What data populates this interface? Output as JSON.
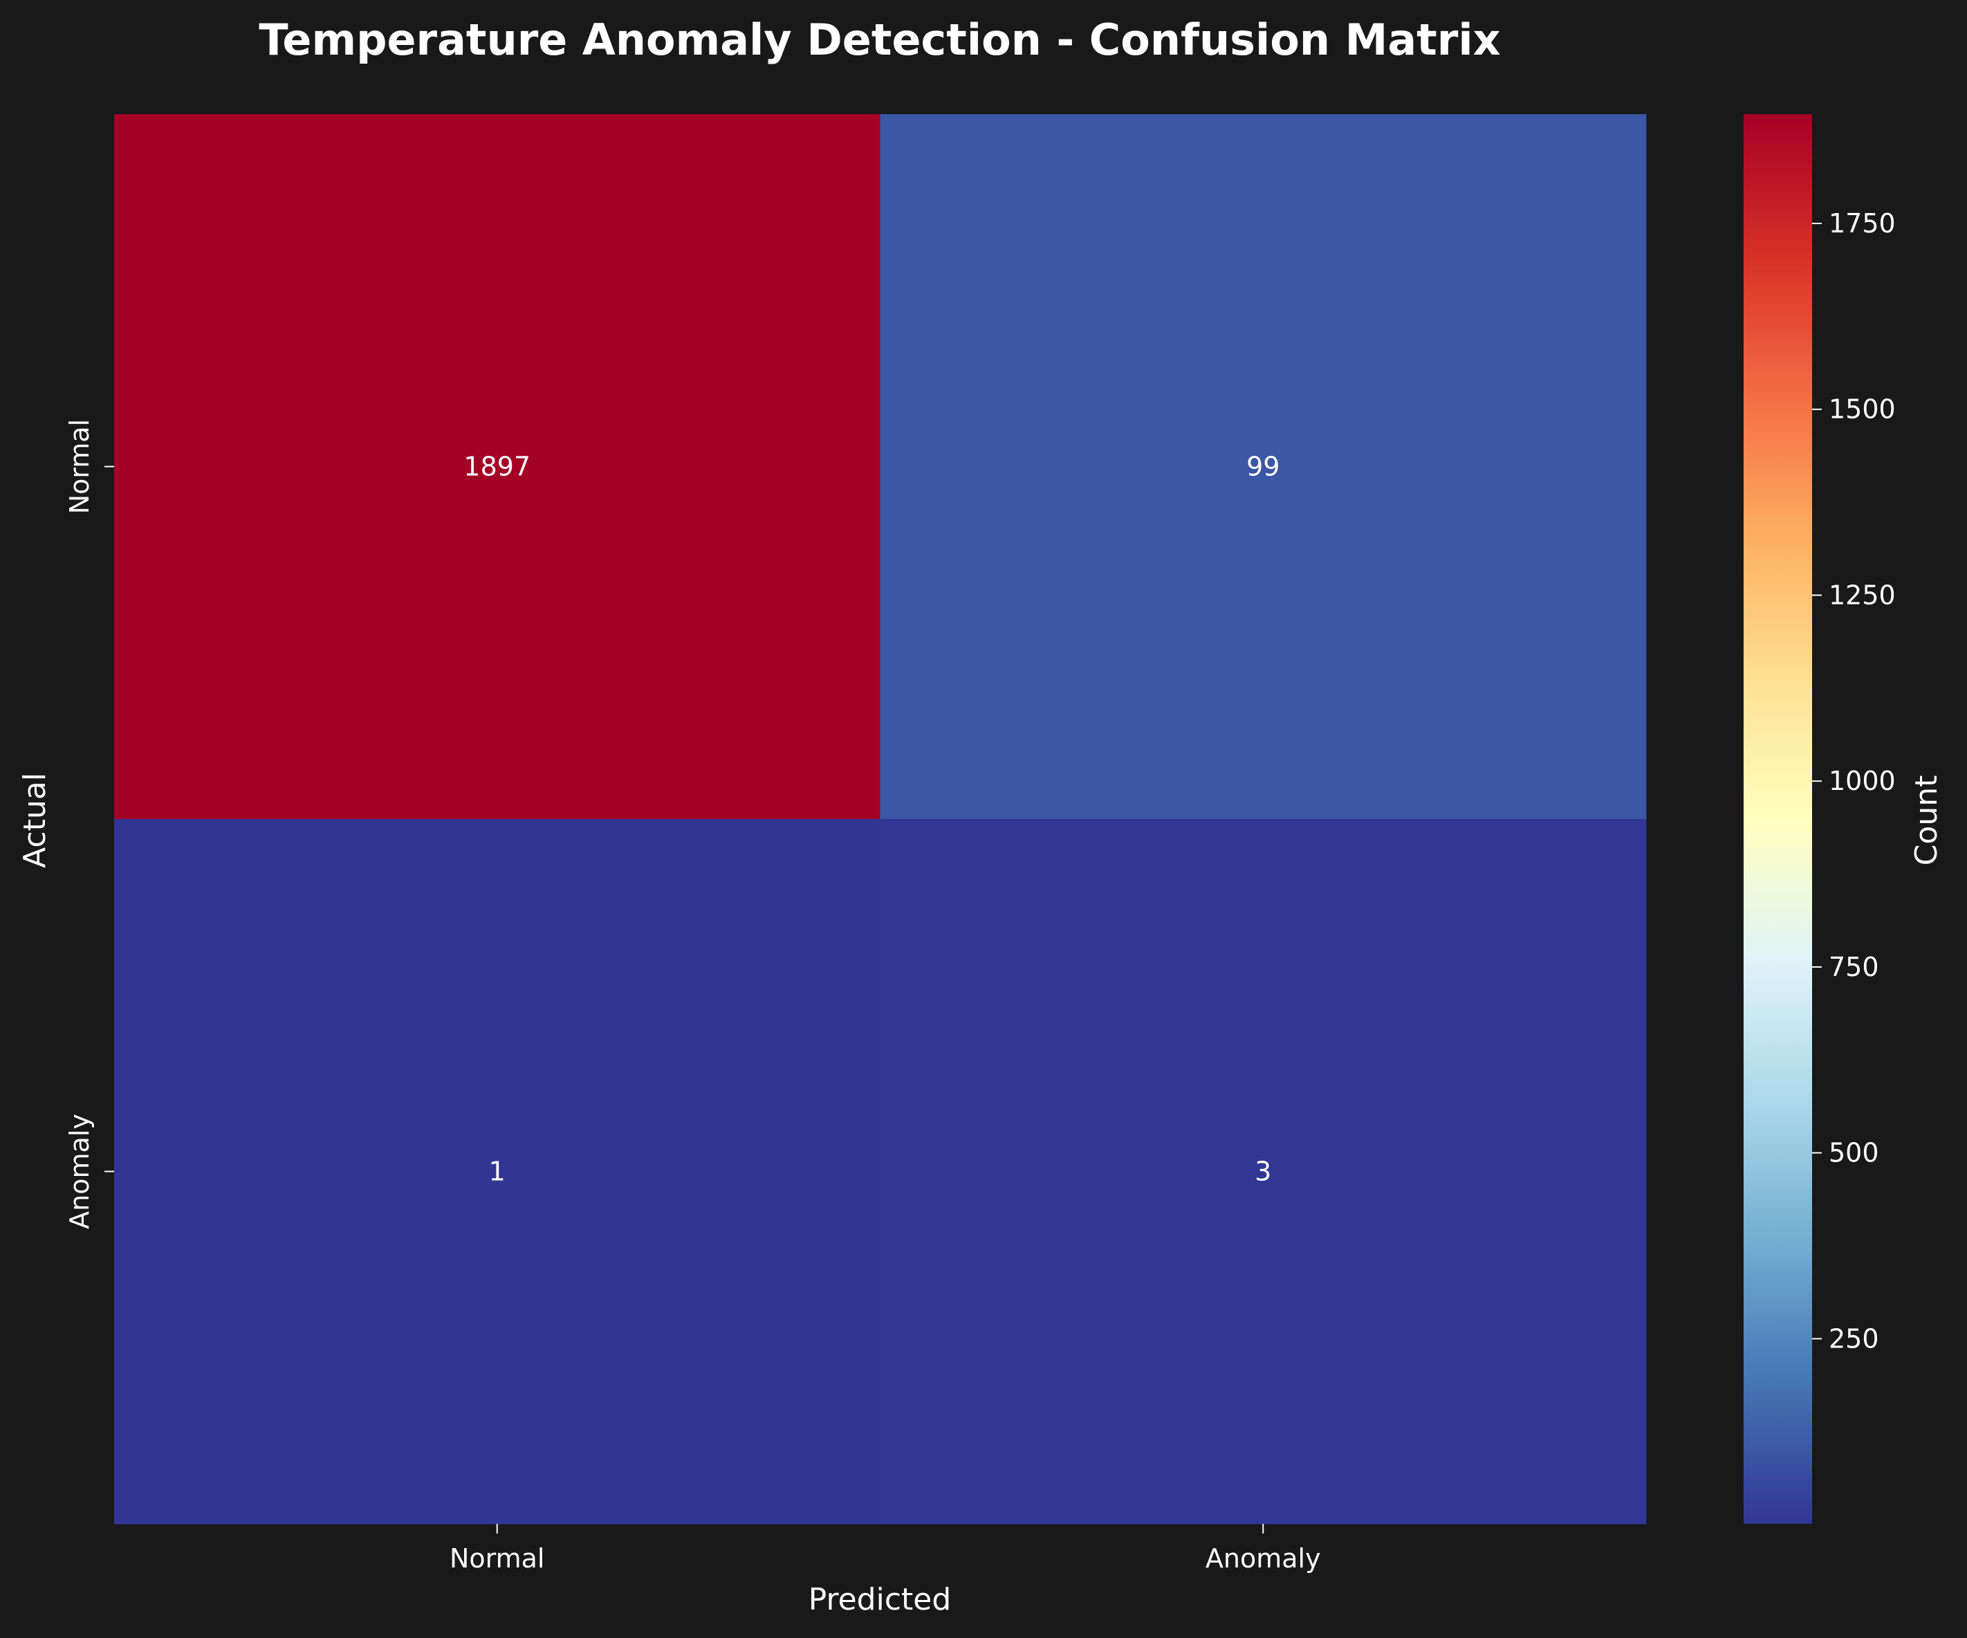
{
  "colors": {
    "background": "#191919",
    "title": "#33ee11",
    "text": "#ffffff"
  },
  "colormap": {
    "name": "RdYlBu_r",
    "stops": [
      "#313695",
      "#4575b4",
      "#74add1",
      "#abd9e9",
      "#e0f3f8",
      "#ffffbf",
      "#fee090",
      "#fdae61",
      "#f46d43",
      "#d73027",
      "#a50026"
    ]
  },
  "chart_data": {
    "type": "heatmap",
    "title": "Temperature Anomaly Detection - Confusion Matrix",
    "xlabel": "Predicted",
    "ylabel": "Actual",
    "x_categories": [
      "Normal",
      "Anomaly"
    ],
    "y_categories": [
      "Normal",
      "Anomaly"
    ],
    "matrix": [
      [
        1897,
        99
      ],
      [
        1,
        3
      ]
    ],
    "colorbar": {
      "label": "Count",
      "range": [
        1,
        1897
      ],
      "ticks": [
        250,
        500,
        750,
        1000,
        1250,
        1500,
        1750
      ]
    }
  }
}
